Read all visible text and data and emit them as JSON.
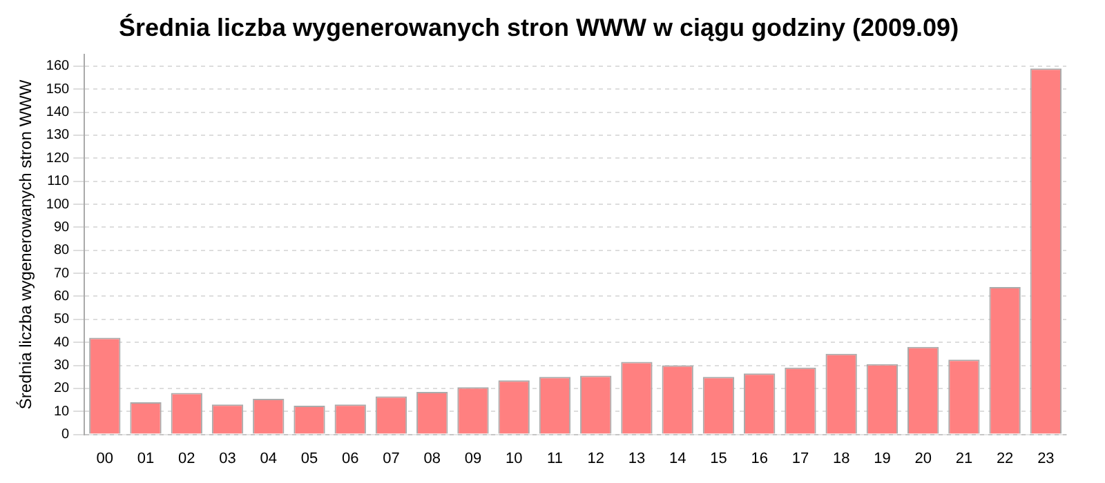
{
  "chart_data": {
    "type": "bar",
    "title": "Średnia liczba wygenerowanych stron WWW w ciągu godziny (2009.09)",
    "ylabel": "Średnia liczba wygenerowanych stron WWW",
    "categories": [
      "00",
      "01",
      "02",
      "03",
      "04",
      "05",
      "06",
      "07",
      "08",
      "09",
      "10",
      "11",
      "12",
      "13",
      "14",
      "15",
      "16",
      "17",
      "18",
      "19",
      "20",
      "21",
      "22",
      "23"
    ],
    "values": [
      42,
      14,
      18,
      13,
      15.5,
      12.5,
      13,
      16.5,
      18.5,
      20.5,
      23.5,
      25,
      25.5,
      31.5,
      30,
      25,
      26.5,
      29,
      35,
      30.5,
      38,
      32.5,
      64,
      159
    ],
    "color": "#ff8080",
    "ylim": [
      0,
      165
    ],
    "yticks": [
      0,
      10,
      20,
      30,
      40,
      50,
      60,
      70,
      80,
      90,
      100,
      110,
      120,
      130,
      140,
      150,
      160
    ],
    "grid": "y"
  }
}
